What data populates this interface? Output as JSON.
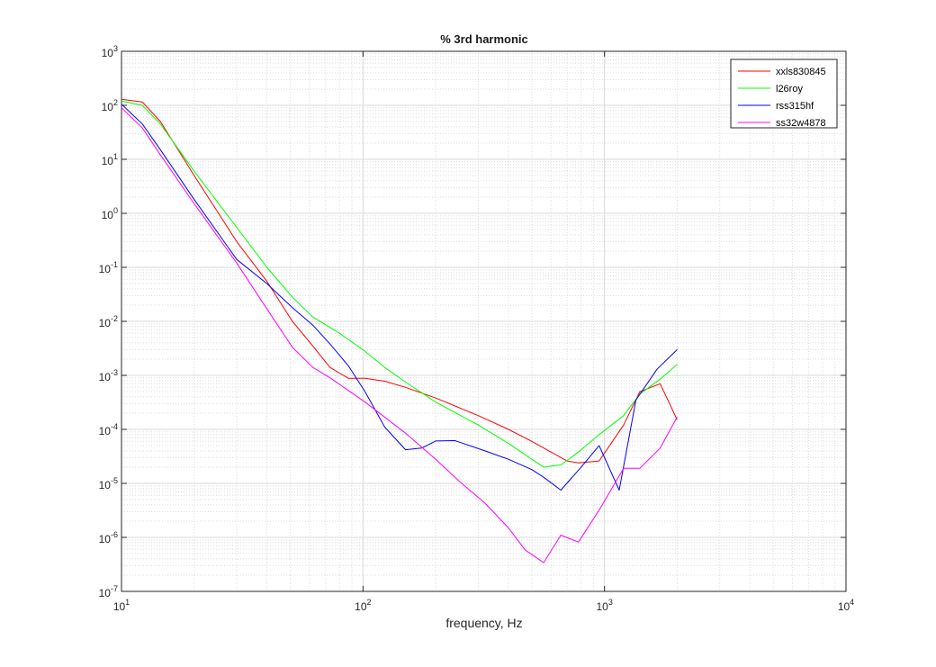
{
  "chart_data": {
    "type": "line",
    "title": "% 3rd harmonic",
    "xlabel": "frequency, Hz",
    "ylabel": "",
    "xscale": "log",
    "yscale": "log",
    "xlim": [
      10,
      10000
    ],
    "ylim": [
      1e-07,
      1000
    ],
    "grid": "on (major and minor)",
    "legend_location": "top-right",
    "x_ticks": [
      {
        "value": 10,
        "base": "10",
        "exp": "1"
      },
      {
        "value": 100,
        "base": "10",
        "exp": "2"
      },
      {
        "value": 1000,
        "base": "10",
        "exp": "3"
      },
      {
        "value": 10000,
        "base": "10",
        "exp": "4"
      }
    ],
    "y_ticks": [
      {
        "value": 1e-07,
        "base": "10",
        "exp": "-7"
      },
      {
        "value": 1e-06,
        "base": "10",
        "exp": "-6"
      },
      {
        "value": 1e-05,
        "base": "10",
        "exp": "-5"
      },
      {
        "value": 0.0001,
        "base": "10",
        "exp": "-4"
      },
      {
        "value": 0.001,
        "base": "10",
        "exp": "-3"
      },
      {
        "value": 0.01,
        "base": "10",
        "exp": "-2"
      },
      {
        "value": 0.1,
        "base": "10",
        "exp": "-1"
      },
      {
        "value": 1,
        "base": "10",
        "exp": "0"
      },
      {
        "value": 10,
        "base": "10",
        "exp": "1"
      },
      {
        "value": 100,
        "base": "10",
        "exp": "2"
      },
      {
        "value": 1000,
        "base": "10",
        "exp": "3"
      }
    ],
    "series": [
      {
        "name": "xxls830845",
        "color": "#ff0000",
        "points": [
          [
            10,
            130
          ],
          [
            12.2,
            115
          ],
          [
            14.5,
            50
          ],
          [
            20,
            5
          ],
          [
            30,
            0.3
          ],
          [
            40,
            0.055
          ],
          [
            51,
            0.01
          ],
          [
            62,
            0.0035
          ],
          [
            73,
            0.0014
          ],
          [
            87,
            0.00088
          ],
          [
            102,
            0.00088
          ],
          [
            123,
            0.00078
          ],
          [
            150,
            0.0006
          ],
          [
            200,
            0.00038
          ],
          [
            300,
            0.00018
          ],
          [
            400,
            0.0001
          ],
          [
            500,
            6e-05
          ],
          [
            600,
            3.8e-05
          ],
          [
            700,
            2.6e-05
          ],
          [
            780,
            2.4e-05
          ],
          [
            950,
            2.6e-05
          ],
          [
            1200,
            0.00012
          ],
          [
            1400,
            0.0005
          ],
          [
            1700,
            0.0007
          ],
          [
            2000,
            0.00015
          ]
        ]
      },
      {
        "name": "l26roy",
        "color": "#00ff00",
        "points": [
          [
            10,
            120
          ],
          [
            12.2,
            100
          ],
          [
            14.5,
            45
          ],
          [
            20,
            6
          ],
          [
            30,
            0.55
          ],
          [
            40,
            0.1
          ],
          [
            51,
            0.028
          ],
          [
            62,
            0.012
          ],
          [
            80,
            0.006
          ],
          [
            102,
            0.0028
          ],
          [
            123,
            0.0014
          ],
          [
            150,
            0.00075
          ],
          [
            200,
            0.00032
          ],
          [
            300,
            0.00012
          ],
          [
            400,
            5.5e-05
          ],
          [
            500,
            2.8e-05
          ],
          [
            560,
            2e-05
          ],
          [
            660,
            2.2e-05
          ],
          [
            780,
            3.8e-05
          ],
          [
            950,
            8e-05
          ],
          [
            1200,
            0.00018
          ],
          [
            1400,
            0.00045
          ],
          [
            1700,
            0.00085
          ],
          [
            2000,
            0.0016
          ]
        ]
      },
      {
        "name": "rss315hf",
        "color": "#0000ff",
        "points": [
          [
            10,
            105
          ],
          [
            12.2,
            45
          ],
          [
            14.5,
            15
          ],
          [
            20,
            1.8
          ],
          [
            30,
            0.14
          ],
          [
            40,
            0.05
          ],
          [
            51,
            0.018
          ],
          [
            62,
            0.0085
          ],
          [
            73,
            0.0038
          ],
          [
            87,
            0.0015
          ],
          [
            102,
            0.0005
          ],
          [
            123,
            0.00011
          ],
          [
            150,
            4.2e-05
          ],
          [
            175,
            4.5e-05
          ],
          [
            200,
            6.1e-05
          ],
          [
            240,
            6.2e-05
          ],
          [
            320,
            4e-05
          ],
          [
            400,
            2.8e-05
          ],
          [
            500,
            1.8e-05
          ],
          [
            560,
            1.3e-05
          ],
          [
            660,
            7.5e-06
          ],
          [
            800,
            2e-05
          ],
          [
            950,
            5e-05
          ],
          [
            1150,
            7.5e-06
          ],
          [
            1350,
            0.00035
          ],
          [
            1650,
            0.0013
          ],
          [
            2000,
            0.003
          ]
        ]
      },
      {
        "name": "ss32w4878",
        "color": "#ff00ff",
        "points": [
          [
            10,
            90
          ],
          [
            12.2,
            38
          ],
          [
            14.5,
            12
          ],
          [
            20,
            1.5
          ],
          [
            30,
            0.12
          ],
          [
            40,
            0.017
          ],
          [
            51,
            0.0033
          ],
          [
            62,
            0.0014
          ],
          [
            73,
            0.0009
          ],
          [
            102,
            0.00032
          ],
          [
            150,
            8.5e-05
          ],
          [
            200,
            2.8e-05
          ],
          [
            250,
            1.1e-05
          ],
          [
            320,
            4.3e-06
          ],
          [
            400,
            1.5e-06
          ],
          [
            470,
            5.8e-07
          ],
          [
            560,
            3.4e-07
          ],
          [
            660,
            1.1e-06
          ],
          [
            780,
            8.2e-07
          ],
          [
            950,
            3.2e-06
          ],
          [
            1200,
            1.9e-05
          ],
          [
            1400,
            1.9e-05
          ],
          [
            1700,
            4.5e-05
          ],
          [
            2000,
            0.00017
          ]
        ]
      }
    ]
  }
}
